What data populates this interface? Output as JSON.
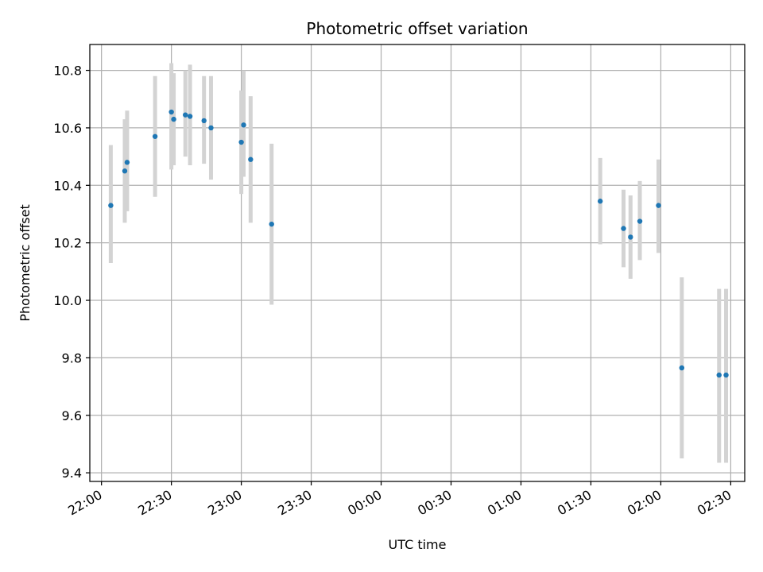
{
  "chart_data": {
    "type": "scatter",
    "title": "Photometric offset variation",
    "xlabel": "UTC time",
    "ylabel": "Photometric offset",
    "x_unit": "UTC time (HH:MM), wraps past midnight",
    "xlim": [
      "21:55",
      "02:36"
    ],
    "ylim": [
      9.37,
      10.89
    ],
    "grid": true,
    "x_ticks": [
      "22:00",
      "22:30",
      "23:00",
      "23:30",
      "00:00",
      "00:30",
      "01:00",
      "01:30",
      "02:00",
      "02:30"
    ],
    "y_ticks": [
      9.4,
      9.6,
      9.8,
      10.0,
      10.2,
      10.4,
      10.6,
      10.8
    ],
    "colors": {
      "point": "#1f77b4",
      "error_bar": "#d3d3d3",
      "grid": "#b0b0b0"
    },
    "points": [
      {
        "x": "22:04",
        "y": 10.33,
        "lo": 10.13,
        "hi": 10.54
      },
      {
        "x": "22:10",
        "y": 10.45,
        "lo": 10.27,
        "hi": 10.63
      },
      {
        "x": "22:11",
        "y": 10.48,
        "lo": 10.31,
        "hi": 10.66
      },
      {
        "x": "22:23",
        "y": 10.57,
        "lo": 10.36,
        "hi": 10.78
      },
      {
        "x": "22:30",
        "y": 10.655,
        "lo": 10.455,
        "hi": 10.825
      },
      {
        "x": "22:31",
        "y": 10.63,
        "lo": 10.47,
        "hi": 10.79
      },
      {
        "x": "22:36",
        "y": 10.645,
        "lo": 10.5,
        "hi": 10.8
      },
      {
        "x": "22:38",
        "y": 10.64,
        "lo": 10.47,
        "hi": 10.82
      },
      {
        "x": "22:44",
        "y": 10.625,
        "lo": 10.475,
        "hi": 10.78
      },
      {
        "x": "22:47",
        "y": 10.6,
        "lo": 10.42,
        "hi": 10.78
      },
      {
        "x": "23:00",
        "y": 10.55,
        "lo": 10.37,
        "hi": 10.73
      },
      {
        "x": "23:01",
        "y": 10.61,
        "lo": 10.43,
        "hi": 10.8
      },
      {
        "x": "23:04",
        "y": 10.49,
        "lo": 10.27,
        "hi": 10.71
      },
      {
        "x": "23:13",
        "y": 10.265,
        "lo": 9.985,
        "hi": 10.545
      },
      {
        "x": "01:34",
        "y": 10.345,
        "lo": 10.195,
        "hi": 10.495
      },
      {
        "x": "01:44",
        "y": 10.25,
        "lo": 10.115,
        "hi": 10.385
      },
      {
        "x": "01:47",
        "y": 10.22,
        "lo": 10.075,
        "hi": 10.365
      },
      {
        "x": "01:51",
        "y": 10.275,
        "lo": 10.14,
        "hi": 10.415
      },
      {
        "x": "01:59",
        "y": 10.33,
        "lo": 10.165,
        "hi": 10.49
      },
      {
        "x": "02:09",
        "y": 9.765,
        "lo": 9.45,
        "hi": 10.08
      },
      {
        "x": "02:25",
        "y": 9.74,
        "lo": 9.435,
        "hi": 10.04
      },
      {
        "x": "02:28",
        "y": 9.74,
        "lo": 9.435,
        "hi": 10.04
      }
    ]
  }
}
